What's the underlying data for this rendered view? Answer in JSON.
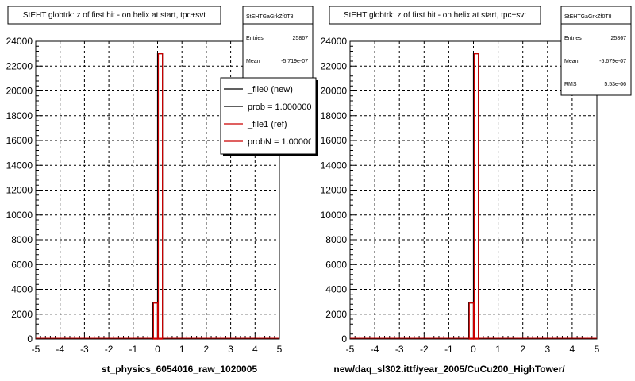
{
  "chart_data": [
    {
      "type": "bar",
      "title": "StEHT globtrk: z of first hit - on helix at start, tpc+svt",
      "xlabel": "st_physics_6054016_raw_1020005",
      "ylabel": "",
      "xlim": [
        -5,
        5
      ],
      "ylim": [
        0,
        24000
      ],
      "x_ticks": [
        "-5",
        "-4",
        "-3",
        "-2",
        "-1",
        "0",
        "1",
        "2",
        "3",
        "4",
        "5"
      ],
      "y_ticks": [
        "0",
        "2000",
        "4000",
        "6000",
        "8000",
        "10000",
        "12000",
        "14000",
        "16000",
        "18000",
        "20000",
        "22000",
        "24000"
      ],
      "grid": true,
      "bins": [
        {
          "x0": -0.2,
          "x1": 0.0,
          "value": 2900
        },
        {
          "x0": 0.0,
          "x1": 0.2,
          "value": 23000
        }
      ],
      "stats": {
        "name": "StEHTGaGrkZf0T8",
        "rows": [
          {
            "label": "Entries",
            "value": "25867"
          },
          {
            "label": "Mean",
            "value": "-5.719e-07"
          }
        ]
      },
      "legend": {
        "placement": "top-right",
        "entries": [
          {
            "label": "_file0 (new)",
            "color": "#000000"
          },
          {
            "label": "prob = 1.000000",
            "color": "#000000"
          },
          {
            "label": "_file1 (ref)",
            "color": "#cc0000"
          },
          {
            "label": "probN = 1.000000",
            "color": "#cc0000"
          }
        ]
      }
    },
    {
      "type": "bar",
      "title": "StEHT globtrk: z of first hit - on helix at start, tpc+svt",
      "xlabel": "new/daq_sl302.ittf/year_2005/CuCu200_HighTower/",
      "ylabel": "",
      "xlim": [
        -5,
        5
      ],
      "ylim": [
        0,
        24000
      ],
      "x_ticks": [
        "-5",
        "-4",
        "-3",
        "-2",
        "-1",
        "0",
        "1",
        "2",
        "3",
        "4",
        "5"
      ],
      "y_ticks": [
        "0",
        "2000",
        "4000",
        "6000",
        "8000",
        "10000",
        "12000",
        "14000",
        "16000",
        "18000",
        "20000",
        "22000",
        "24000"
      ],
      "grid": true,
      "bins": [
        {
          "x0": -0.2,
          "x1": 0.0,
          "value": 2900
        },
        {
          "x0": 0.0,
          "x1": 0.2,
          "value": 23000
        }
      ],
      "stats": {
        "name": "StEHTGaGrkZf0T8",
        "rows": [
          {
            "label": "Entries",
            "value": "25867"
          },
          {
            "label": "Mean",
            "value": "-5.679e-07"
          },
          {
            "label": "RMS",
            "value": "5.53e-06"
          }
        ]
      }
    }
  ],
  "colors": {
    "hist_new": "#000000",
    "hist_ref": "#cc0000",
    "grid": "#000000",
    "background": "#ffffff"
  }
}
